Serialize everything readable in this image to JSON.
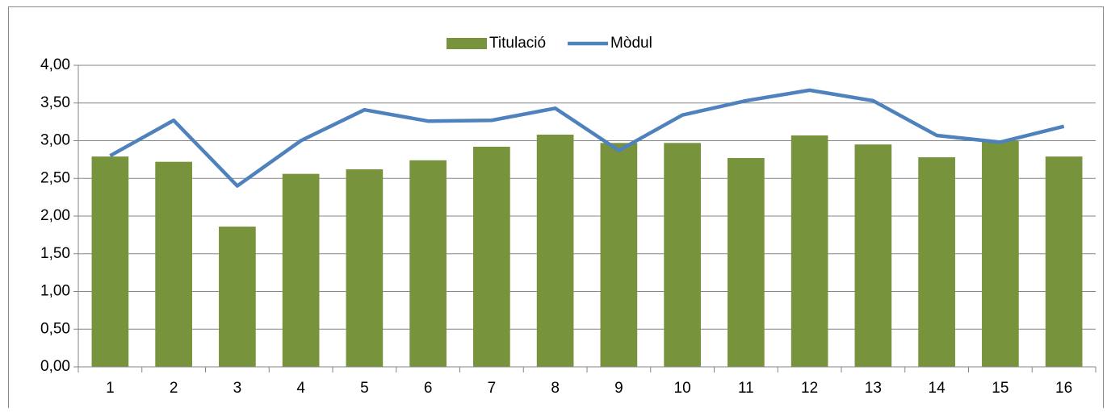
{
  "chart_data": {
    "type": "combo",
    "categories": [
      "1",
      "2",
      "3",
      "4",
      "5",
      "6",
      "7",
      "8",
      "9",
      "10",
      "11",
      "12",
      "13",
      "14",
      "15",
      "16"
    ],
    "series": [
      {
        "name": "Titulació",
        "type": "bar",
        "color": "#77933c",
        "values": [
          2.79,
          2.72,
          1.86,
          2.56,
          2.62,
          2.74,
          2.92,
          3.08,
          2.97,
          2.97,
          2.77,
          3.07,
          2.95,
          2.78,
          3.0,
          2.79
        ]
      },
      {
        "name": "Mòdul",
        "type": "line",
        "color": "#4f81bd",
        "values": [
          2.8,
          3.27,
          2.4,
          3.0,
          3.41,
          3.26,
          3.27,
          3.43,
          2.87,
          3.34,
          3.53,
          3.67,
          3.53,
          3.07,
          2.98,
          3.19
        ]
      }
    ],
    "ylim": [
      0,
      4
    ],
    "yticks": [
      {
        "value": 0,
        "label": "0,00"
      },
      {
        "value": 0.5,
        "label": "0,50"
      },
      {
        "value": 1,
        "label": "1,00"
      },
      {
        "value": 1.5,
        "label": "1,50"
      },
      {
        "value": 2,
        "label": "2,00"
      },
      {
        "value": 2.5,
        "label": "2,50"
      },
      {
        "value": 3,
        "label": "3,00"
      },
      {
        "value": 3.5,
        "label": "3,50"
      },
      {
        "value": 4,
        "label": "4,00"
      }
    ],
    "grid": true,
    "legend": "top"
  }
}
